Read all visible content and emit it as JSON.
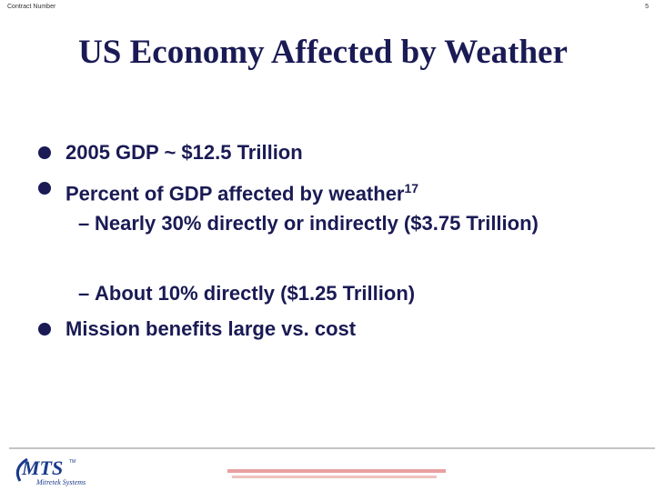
{
  "header": {
    "left": "Contract Number",
    "page": "5"
  },
  "title": "US Economy Affected by Weather",
  "bullets": [
    {
      "text": "2005 GDP ~ $12.5 Trillion"
    },
    {
      "text": "Percent of GDP affected by weather",
      "superscript": "17",
      "subitems": [
        "Nearly 30% directly or indirectly ($3.75 Trillion)",
        "About 10% directly ($1.25 Trillion)"
      ]
    },
    {
      "text": "Mission benefits large vs. cost"
    }
  ],
  "footer": {
    "logo": "MTS",
    "trademark": "TM",
    "company": "Mitretek Systems"
  }
}
